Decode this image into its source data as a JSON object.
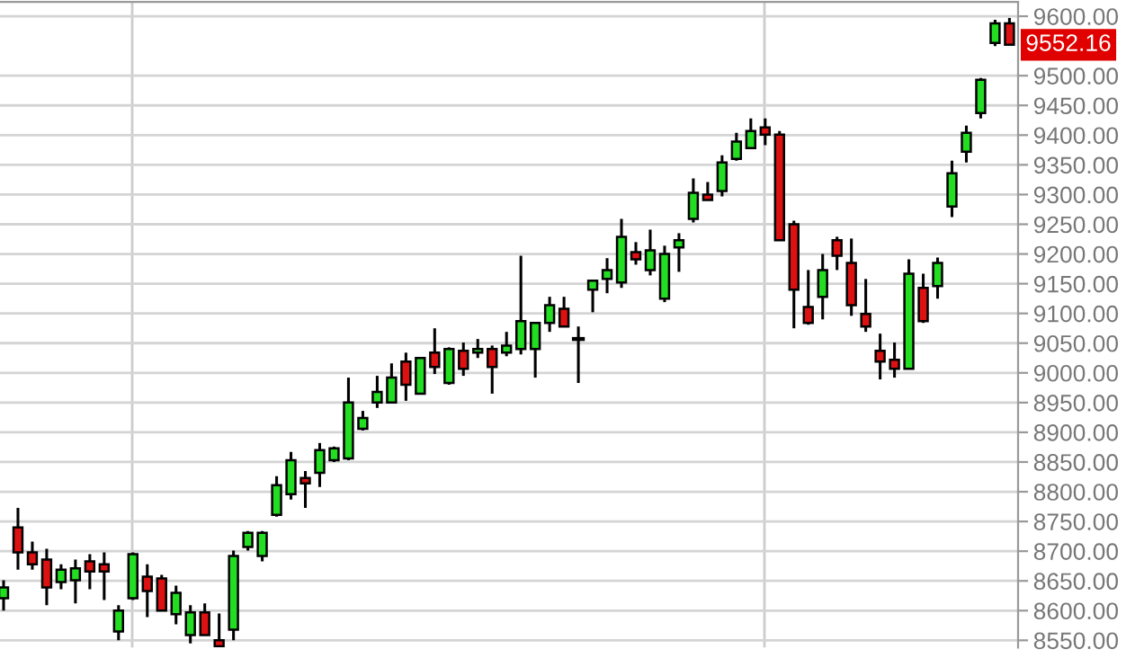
{
  "chart_data": {
    "type": "candlestick",
    "categories": [
      null,
      null,
      null,
      null,
      null,
      null,
      null,
      null,
      null,
      null,
      null,
      null,
      null,
      null,
      null,
      null,
      null,
      null,
      null,
      null,
      null,
      null,
      null,
      null,
      null,
      null,
      null,
      null,
      null,
      null,
      null,
      null,
      null,
      null,
      null,
      null,
      null,
      null,
      null,
      null,
      null,
      null,
      null,
      null,
      null,
      null,
      null,
      null,
      null,
      null,
      null,
      null,
      null,
      null,
      null,
      null,
      null,
      null,
      null,
      null,
      null,
      null,
      null,
      null,
      null,
      null,
      null,
      null,
      null,
      null,
      null
    ],
    "ohlc": [
      [
        8621,
        8651,
        8600,
        8639
      ],
      [
        8740,
        8773,
        8669,
        8698
      ],
      [
        8698,
        8716,
        8669,
        8678
      ],
      [
        8686,
        8704,
        8609,
        8639
      ],
      [
        8648,
        8678,
        8636,
        8669
      ],
      [
        8651,
        8686,
        8612,
        8671
      ],
      [
        8683,
        8695,
        8636,
        8666
      ],
      [
        8678,
        8698,
        8618,
        8666
      ],
      [
        8565,
        8609,
        8550,
        8600
      ],
      [
        8621,
        8698,
        8618,
        8695
      ],
      [
        8657,
        8678,
        8589,
        8633
      ],
      [
        8654,
        8660,
        8600,
        8600
      ],
      [
        8594,
        8642,
        8577,
        8630
      ],
      [
        8559,
        8609,
        8545,
        8597
      ],
      [
        8597,
        8612,
        8559,
        8559
      ],
      [
        8550,
        8595,
        8540,
        8540
      ],
      [
        8568,
        8701,
        8550,
        8692
      ],
      [
        8707,
        8734,
        8701,
        8731
      ],
      [
        8692,
        8734,
        8683,
        8731
      ],
      [
        8761,
        8826,
        8758,
        8811
      ],
      [
        8796,
        8867,
        8787,
        8853
      ],
      [
        8823,
        8835,
        8773,
        8814
      ],
      [
        8832,
        8882,
        8808,
        8870
      ],
      [
        8853,
        8876,
        8850,
        8873
      ],
      [
        8856,
        8992,
        8853,
        8950
      ],
      [
        8906,
        8936,
        8903,
        8924
      ],
      [
        8950,
        8995,
        8941,
        8968
      ],
      [
        8950,
        9016,
        8950,
        8992
      ],
      [
        9019,
        9034,
        8953,
        8980
      ],
      [
        8965,
        9025,
        8965,
        9025
      ],
      [
        9034,
        9075,
        8998,
        9010
      ],
      [
        8983,
        9043,
        8980,
        9040
      ],
      [
        9037,
        9051,
        8995,
        9007
      ],
      [
        9034,
        9057,
        9025,
        9040
      ],
      [
        9040,
        9046,
        8965,
        9010
      ],
      [
        9034,
        9069,
        9028,
        9046
      ],
      [
        9040,
        9197,
        9031,
        9087
      ],
      [
        9040,
        9084,
        8992,
        9084
      ],
      [
        9084,
        9128,
        9069,
        9114
      ],
      [
        9108,
        9128,
        9078,
        9078
      ],
      [
        9057,
        9078,
        8983,
        9057
      ],
      [
        9140,
        9155,
        9102,
        9155
      ],
      [
        9158,
        9193,
        9134,
        9173
      ],
      [
        9152,
        9259,
        9143,
        9229
      ],
      [
        9203,
        9220,
        9182,
        9191
      ],
      [
        9173,
        9241,
        9164,
        9206
      ],
      [
        9125,
        9214,
        9119,
        9200
      ],
      [
        9211,
        9235,
        9170,
        9223
      ],
      [
        9259,
        9327,
        9253,
        9303
      ],
      [
        9300,
        9321,
        9291,
        9291
      ],
      [
        9306,
        9366,
        9297,
        9354
      ],
      [
        9360,
        9404,
        9357,
        9389
      ],
      [
        9378,
        9428,
        9378,
        9407
      ],
      [
        9413,
        9428,
        9383,
        9401
      ],
      [
        9401,
        9407,
        9223,
        9223
      ],
      [
        9250,
        9256,
        9075,
        9140
      ],
      [
        9111,
        9173,
        9081,
        9084
      ],
      [
        9128,
        9200,
        9090,
        9173
      ],
      [
        9223,
        9229,
        9173,
        9197
      ],
      [
        9185,
        9226,
        9096,
        9114
      ],
      [
        9099,
        9158,
        9069,
        9078
      ],
      [
        9037,
        9066,
        8989,
        9019
      ],
      [
        9022,
        9051,
        8992,
        9007
      ],
      [
        9007,
        9191,
        9007,
        9167
      ],
      [
        9143,
        9167,
        9084,
        9087
      ],
      [
        9146,
        9194,
        9125,
        9185
      ],
      [
        9280,
        9357,
        9262,
        9336
      ],
      [
        9372,
        9416,
        9354,
        9404
      ],
      [
        9437,
        9496,
        9428,
        9493
      ],
      [
        9555,
        9594,
        9550,
        9588
      ],
      [
        9588,
        9597,
        9552,
        9552
      ]
    ],
    "colors": [
      "#22dd22",
      "#dd1111",
      "#dd1111",
      "#dd1111",
      "#22dd22",
      "#22dd22",
      "#dd1111",
      "#dd1111",
      "#22dd22",
      "#22dd22",
      "#dd1111",
      "#dd1111",
      "#22dd22",
      "#22dd22",
      "#dd1111",
      "#dd1111",
      "#22dd22",
      "#22dd22",
      "#22dd22",
      "#22dd22",
      "#22dd22",
      "#dd1111",
      "#22dd22",
      "#22dd22",
      "#22dd22",
      "#22dd22",
      "#22dd22",
      "#22dd22",
      "#dd1111",
      "#22dd22",
      "#dd1111",
      "#22dd22",
      "#dd1111",
      "#22dd22",
      "#dd1111",
      "#22dd22",
      "#22dd22",
      "#22dd22",
      "#22dd22",
      "#dd1111",
      "#000000",
      "#22dd22",
      "#22dd22",
      "#22dd22",
      "#dd1111",
      "#22dd22",
      "#22dd22",
      "#22dd22",
      "#22dd22",
      "#dd1111",
      "#22dd22",
      "#22dd22",
      "#22dd22",
      "#dd1111",
      "#dd1111",
      "#dd1111",
      "#dd1111",
      "#22dd22",
      "#dd1111",
      "#dd1111",
      "#dd1111",
      "#dd1111",
      "#dd1111",
      "#22dd22",
      "#dd1111",
      "#22dd22",
      "#22dd22",
      "#22dd22",
      "#22dd22",
      "#22dd22",
      "#dd1111"
    ],
    "ylim": [
      8538,
      9624
    ],
    "yticks": [
      {
        "value": 8550,
        "label": "8550.00"
      },
      {
        "value": 8600,
        "label": "8600.00"
      },
      {
        "value": 8650,
        "label": "8650.00"
      },
      {
        "value": 8700,
        "label": "8700.00"
      },
      {
        "value": 8750,
        "label": "8750.00"
      },
      {
        "value": 8800,
        "label": "8800.00"
      },
      {
        "value": 8850,
        "label": "8850.00"
      },
      {
        "value": 8900,
        "label": "8900.00"
      },
      {
        "value": 8950,
        "label": "8950.00"
      },
      {
        "value": 9000,
        "label": "9000.00"
      },
      {
        "value": 9050,
        "label": "9050.00"
      },
      {
        "value": 9100,
        "label": "9100.00"
      },
      {
        "value": 9150,
        "label": "9150.00"
      },
      {
        "value": 9200,
        "label": "9200.00"
      },
      {
        "value": 9250,
        "label": "9250.00"
      },
      {
        "value": 9300,
        "label": "9300.00"
      },
      {
        "value": 9350,
        "label": "9350.00"
      },
      {
        "value": 9400,
        "label": "9400.00"
      },
      {
        "value": 9450,
        "label": "9450.00"
      },
      {
        "value": 9500,
        "label": "9500.00"
      },
      {
        "value": 9600,
        "label": "9600.00"
      }
    ],
    "annotations": [
      "9552.16"
    ],
    "grid": "y"
  }
}
